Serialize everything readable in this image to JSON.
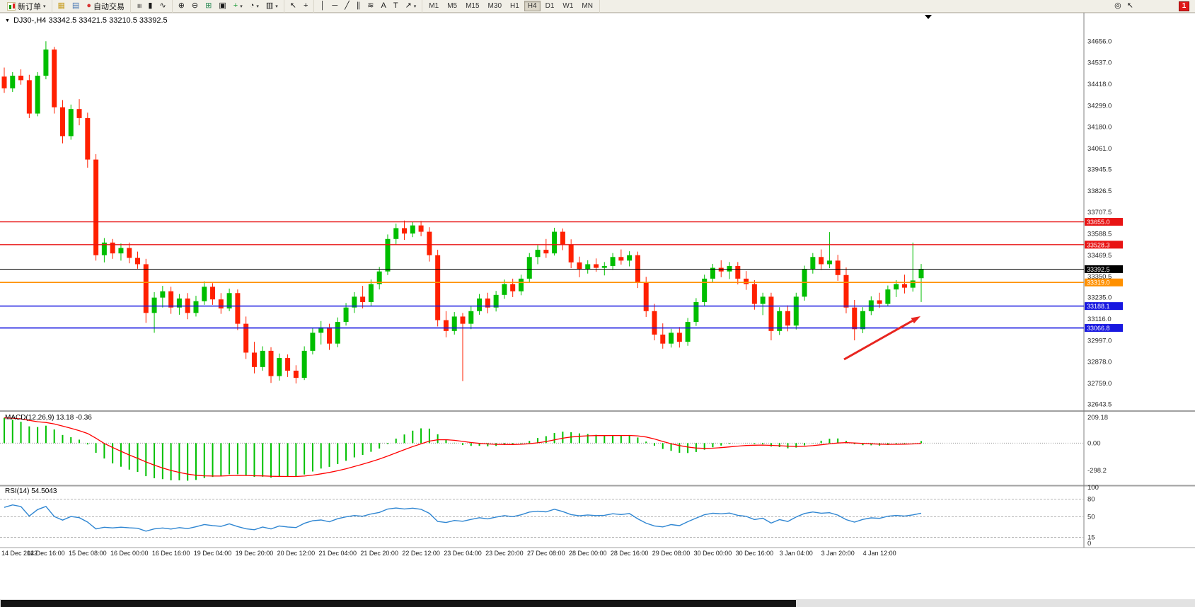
{
  "icons": {
    "collapse": "▼",
    "dropdown": "▾"
  },
  "toolbar": {
    "groups": [
      {
        "name": "order-group",
        "items": [
          {
            "name": "new-order-button",
            "kind": "candle-icon",
            "label": "新订单",
            "dd": true
          }
        ]
      },
      {
        "name": "window-group",
        "items": [
          {
            "name": "charts-window-button",
            "glyph": "▦",
            "color": "#c8a028"
          },
          {
            "name": "profiles-button",
            "glyph": "▤",
            "color": "#4a78b4"
          },
          {
            "name": "auto-trading-button",
            "glyph": "●",
            "color": "#d83434",
            "label": "自动交易"
          }
        ]
      },
      {
        "name": "chart-type-group",
        "items": [
          {
            "name": "bar-chart-button",
            "glyph": "≡",
            "rot": true
          },
          {
            "name": "candlestick-chart-button",
            "glyph": "▮"
          },
          {
            "name": "line-chart-button",
            "glyph": "∿"
          }
        ]
      },
      {
        "name": "zoom-group",
        "items": [
          {
            "name": "zoom-in-button",
            "glyph": "⊕"
          },
          {
            "name": "zoom-out-button",
            "glyph": "⊖"
          },
          {
            "name": "tile-windows-button",
            "glyph": "⊞",
            "color": "#2e8b57"
          },
          {
            "name": "arrange-button",
            "glyph": "▣"
          },
          {
            "name": "indicators-button",
            "glyph": "+",
            "color": "#1f9d3a",
            "dd": true
          },
          {
            "name": "periods-button",
            "glyph": "◔",
            "dd": true
          },
          {
            "name": "templates-button",
            "glyph": "▥",
            "dd": true
          }
        ]
      },
      {
        "name": "cursor-group",
        "items": [
          {
            "name": "cursor-button",
            "glyph": "↖"
          },
          {
            "name": "crosshair-button",
            "glyph": "+"
          }
        ]
      },
      {
        "name": "draw-group",
        "items": [
          {
            "name": "vertical-line-button",
            "glyph": "│"
          },
          {
            "name": "horizontal-line-button",
            "glyph": "─"
          },
          {
            "name": "trendline-button",
            "glyph": "╱"
          },
          {
            "name": "channel-button",
            "glyph": "∥"
          },
          {
            "name": "fibonacci-button",
            "glyph": "≋"
          },
          {
            "name": "text-button",
            "glyph": "A"
          },
          {
            "name": "label-button",
            "glyph": "T"
          },
          {
            "name": "arrows-button",
            "glyph": "↗",
            "dd": true
          }
        ]
      }
    ],
    "timeframes": [
      "M1",
      "M5",
      "M15",
      "M30",
      "H1",
      "H4",
      "D1",
      "W1",
      "MN"
    ],
    "active_timeframe": "H4",
    "right_items": [
      {
        "name": "search-button",
        "glyph": "◎"
      },
      {
        "name": "pointer-button",
        "glyph": "↖"
      }
    ],
    "notification_count": "1"
  },
  "chart": {
    "title": "DJ30-,H4 33342.5 33421.5 33210.5 33392.5",
    "symbol": "DJ30-",
    "period": "H4",
    "ohlc": {
      "open": "33342.5",
      "high": "33421.5",
      "low": "33210.5",
      "close": "33392.5"
    }
  },
  "indicators": {
    "macd_label": "MACD(12,26,9) 13.18 -0.36",
    "rsi_label": "RSI(14) 54.5043"
  },
  "chart_data": [
    {
      "type": "candlestick",
      "symbol": "DJ30-",
      "timeframe": "H4",
      "up_color": "#00BE00",
      "down_color": "#FF2000",
      "y_range": [
        32618,
        34810
      ],
      "y_axis_ticks": [
        "34656.0",
        "34537.0",
        "34418.0",
        "34299.0",
        "34180.0",
        "34061.0",
        "33945.5",
        "33826.5",
        "33707.5",
        "33588.5",
        "33469.5",
        "33350.5",
        "33235.0",
        "33116.0",
        "32997.0",
        "32878.0",
        "32759.0",
        "32643.5"
      ],
      "hlines": [
        {
          "price": 33655.0,
          "label": "33655.0",
          "color": "#E81414",
          "width": 1.4
        },
        {
          "price": 33528.3,
          "label": "33528.3",
          "color": "#E81414",
          "width": 1.4
        },
        {
          "price": 33392.5,
          "label": "33392.5",
          "color": "#000000",
          "width": 1
        },
        {
          "price": 33319.0,
          "label": "33319.0",
          "color": "#FF9000",
          "width": 1.6
        },
        {
          "price": 33188.1,
          "label": "33188.1",
          "color": "#1818E0",
          "width": 1.6
        },
        {
          "price": 33066.8,
          "label": "33066.8",
          "color": "#1818E0",
          "width": 1.6
        }
      ],
      "x_labels": [
        "14 Dec 2022",
        "14 Dec 16:00",
        "15 Dec 08:00",
        "16 Dec 00:00",
        "16 Dec 16:00",
        "19 Dec 04:00",
        "19 Dec 20:00",
        "20 Dec 12:00",
        "21 Dec 04:00",
        "21 Dec 20:00",
        "22 Dec 12:00",
        "23 Dec 04:00",
        "23 Dec 20:00",
        "27 Dec 08:00",
        "28 Dec 00:00",
        "28 Dec 16:00",
        "29 Dec 08:00",
        "30 Dec 00:00",
        "30 Dec 16:00",
        "3 Jan 04:00",
        "3 Jan 20:00",
        "4 Jan 12:00"
      ],
      "x_label_step": 5,
      "candles": [
        [
          34460,
          34510,
          34370,
          34395
        ],
        [
          34395,
          34485,
          34375,
          34465
        ],
        [
          34465,
          34500,
          34415,
          34440
        ],
        [
          34440,
          34470,
          34230,
          34255
        ],
        [
          34255,
          34485,
          34240,
          34465
        ],
        [
          34465,
          34656,
          34445,
          34610
        ],
        [
          34610,
          34625,
          34255,
          34290
        ],
        [
          34290,
          34330,
          34090,
          34130
        ],
        [
          34130,
          34305,
          34110,
          34280
        ],
        [
          34280,
          34335,
          34190,
          34230
        ],
        [
          34230,
          34260,
          33955,
          34000
        ],
        [
          34000,
          34030,
          33440,
          33470
        ],
        [
          33470,
          33565,
          33430,
          33540
        ],
        [
          33540,
          33560,
          33450,
          33480
        ],
        [
          33480,
          33535,
          33440,
          33510
        ],
        [
          33510,
          33540,
          33425,
          33455
        ],
        [
          33455,
          33490,
          33395,
          33420
        ],
        [
          33420,
          33450,
          33095,
          33150
        ],
        [
          33150,
          33265,
          33040,
          33235
        ],
        [
          33235,
          33300,
          33180,
          33270
        ],
        [
          33270,
          33295,
          33145,
          33180
        ],
        [
          33180,
          33255,
          33140,
          33230
        ],
        [
          33230,
          33260,
          33115,
          33150
        ],
        [
          33150,
          33245,
          33130,
          33215
        ],
        [
          33215,
          33325,
          33195,
          33295
        ],
        [
          33295,
          33315,
          33195,
          33225
        ],
        [
          33225,
          33260,
          33145,
          33175
        ],
        [
          33175,
          33285,
          33160,
          33260
        ],
        [
          33260,
          33280,
          33055,
          33090
        ],
        [
          33090,
          33130,
          32895,
          32930
        ],
        [
          32930,
          32990,
          32815,
          32850
        ],
        [
          32850,
          32965,
          32830,
          32940
        ],
        [
          32940,
          32960,
          32762,
          32800
        ],
        [
          32800,
          32925,
          32775,
          32900
        ],
        [
          32900,
          32920,
          32795,
          32830
        ],
        [
          32830,
          32860,
          32759,
          32790
        ],
        [
          32790,
          32965,
          32778,
          32940
        ],
        [
          32940,
          33065,
          32920,
          33040
        ],
        [
          33040,
          33105,
          32975,
          33070
        ],
        [
          33070,
          33090,
          32945,
          32980
        ],
        [
          32980,
          33125,
          32960,
          33100
        ],
        [
          33100,
          33205,
          33080,
          33180
        ],
        [
          33180,
          33265,
          33150,
          33240
        ],
        [
          33240,
          33300,
          33175,
          33210
        ],
        [
          33210,
          33335,
          33190,
          33310
        ],
        [
          33310,
          33405,
          33280,
          33380
        ],
        [
          33380,
          33585,
          33360,
          33560
        ],
        [
          33560,
          33645,
          33530,
          33620
        ],
        [
          33620,
          33662,
          33555,
          33590
        ],
        [
          33590,
          33655,
          33570,
          33635
        ],
        [
          33635,
          33660,
          33575,
          33600
        ],
        [
          33600,
          33625,
          33435,
          33470
        ],
        [
          33470,
          33500,
          33075,
          33110
        ],
        [
          33110,
          33160,
          33015,
          33050
        ],
        [
          33050,
          33155,
          33030,
          33130
        ],
        [
          33130,
          33150,
          32772,
          33090
        ],
        [
          33090,
          33185,
          33060,
          33160
        ],
        [
          33160,
          33255,
          33140,
          33230
        ],
        [
          33230,
          33262,
          33148,
          33180
        ],
        [
          33180,
          33272,
          33158,
          33250
        ],
        [
          33250,
          33335,
          33228,
          33310
        ],
        [
          33310,
          33340,
          33238,
          33270
        ],
        [
          33270,
          33362,
          33248,
          33340
        ],
        [
          33340,
          33482,
          33318,
          33460
        ],
        [
          33460,
          33525,
          33420,
          33500
        ],
        [
          33500,
          33560,
          33455,
          33480
        ],
        [
          33480,
          33622,
          33468,
          33600
        ],
        [
          33600,
          33618,
          33498,
          33530
        ],
        [
          33530,
          33558,
          33398,
          33430
        ],
        [
          33430,
          33462,
          33348,
          33390
        ],
        [
          33390,
          33442,
          33368,
          33420
        ],
        [
          33420,
          33452,
          33378,
          33400
        ],
        [
          33400,
          33432,
          33358,
          33410
        ],
        [
          33410,
          33482,
          33388,
          33460
        ],
        [
          33460,
          33502,
          33418,
          33440
        ],
        [
          33440,
          33492,
          33408,
          33470
        ],
        [
          33470,
          33490,
          33288,
          33320
        ],
        [
          33320,
          33350,
          33128,
          33160
        ],
        [
          33160,
          33200,
          32998,
          33030
        ],
        [
          33030,
          33092,
          32952,
          32980
        ],
        [
          32980,
          33062,
          32958,
          33040
        ],
        [
          33040,
          33072,
          32958,
          32990
        ],
        [
          32990,
          33122,
          32968,
          33100
        ],
        [
          33100,
          33232,
          33078,
          33210
        ],
        [
          33210,
          33362,
          33188,
          33340
        ],
        [
          33340,
          33422,
          33318,
          33400
        ],
        [
          33400,
          33442,
          33348,
          33380
        ],
        [
          33380,
          33432,
          33338,
          33410
        ],
        [
          33410,
          33432,
          33308,
          33340
        ],
        [
          33340,
          33382,
          33278,
          33310
        ],
        [
          33310,
          33332,
          33168,
          33200
        ],
        [
          33200,
          33262,
          33138,
          33240
        ],
        [
          33240,
          33262,
          32998,
          33050
        ],
        [
          33050,
          33182,
          33028,
          33160
        ],
        [
          33160,
          33192,
          33048,
          33080
        ],
        [
          33080,
          33262,
          33058,
          33240
        ],
        [
          33240,
          33412,
          33218,
          33390
        ],
        [
          33390,
          33482,
          33368,
          33460
        ],
        [
          33460,
          33502,
          33388,
          33420
        ],
        [
          33420,
          33598,
          33398,
          33440
        ],
        [
          33440,
          33472,
          33328,
          33360
        ],
        [
          33360,
          33402,
          33148,
          33180
        ],
        [
          33180,
          33222,
          32998,
          33060
        ],
        [
          33060,
          33182,
          33038,
          33160
        ],
        [
          33160,
          33242,
          33138,
          33220
        ],
        [
          33220,
          33262,
          33178,
          33200
        ],
        [
          33200,
          33302,
          33188,
          33280
        ],
        [
          33280,
          33332,
          33238,
          33310
        ],
        [
          33310,
          33362,
          33258,
          33290
        ],
        [
          33290,
          33540,
          33268,
          33330
        ],
        [
          33342.5,
          33421.5,
          33210.5,
          33392.5
        ]
      ]
    },
    {
      "type": "bar",
      "name": "MACD",
      "label": "MACD(12,26,9) 13.18 -0.36",
      "params": [
        12,
        26,
        9
      ],
      "values_current": [
        13.18,
        -0.36
      ],
      "y_ticks": [
        "209.18",
        "0.00",
        "-298.2"
      ],
      "y_range": [
        -298.2,
        209.18
      ],
      "histogram_color": "#00C000",
      "signal_color": "#FF0000"
    },
    {
      "type": "line",
      "name": "RSI",
      "label": "RSI(14) 54.5043",
      "period": 14,
      "value_current": 54.5043,
      "y_ticks": [
        "100",
        "80",
        "50",
        "15",
        "0"
      ],
      "levels": [
        80,
        50,
        15
      ],
      "line_color": "#2F86D2"
    }
  ]
}
